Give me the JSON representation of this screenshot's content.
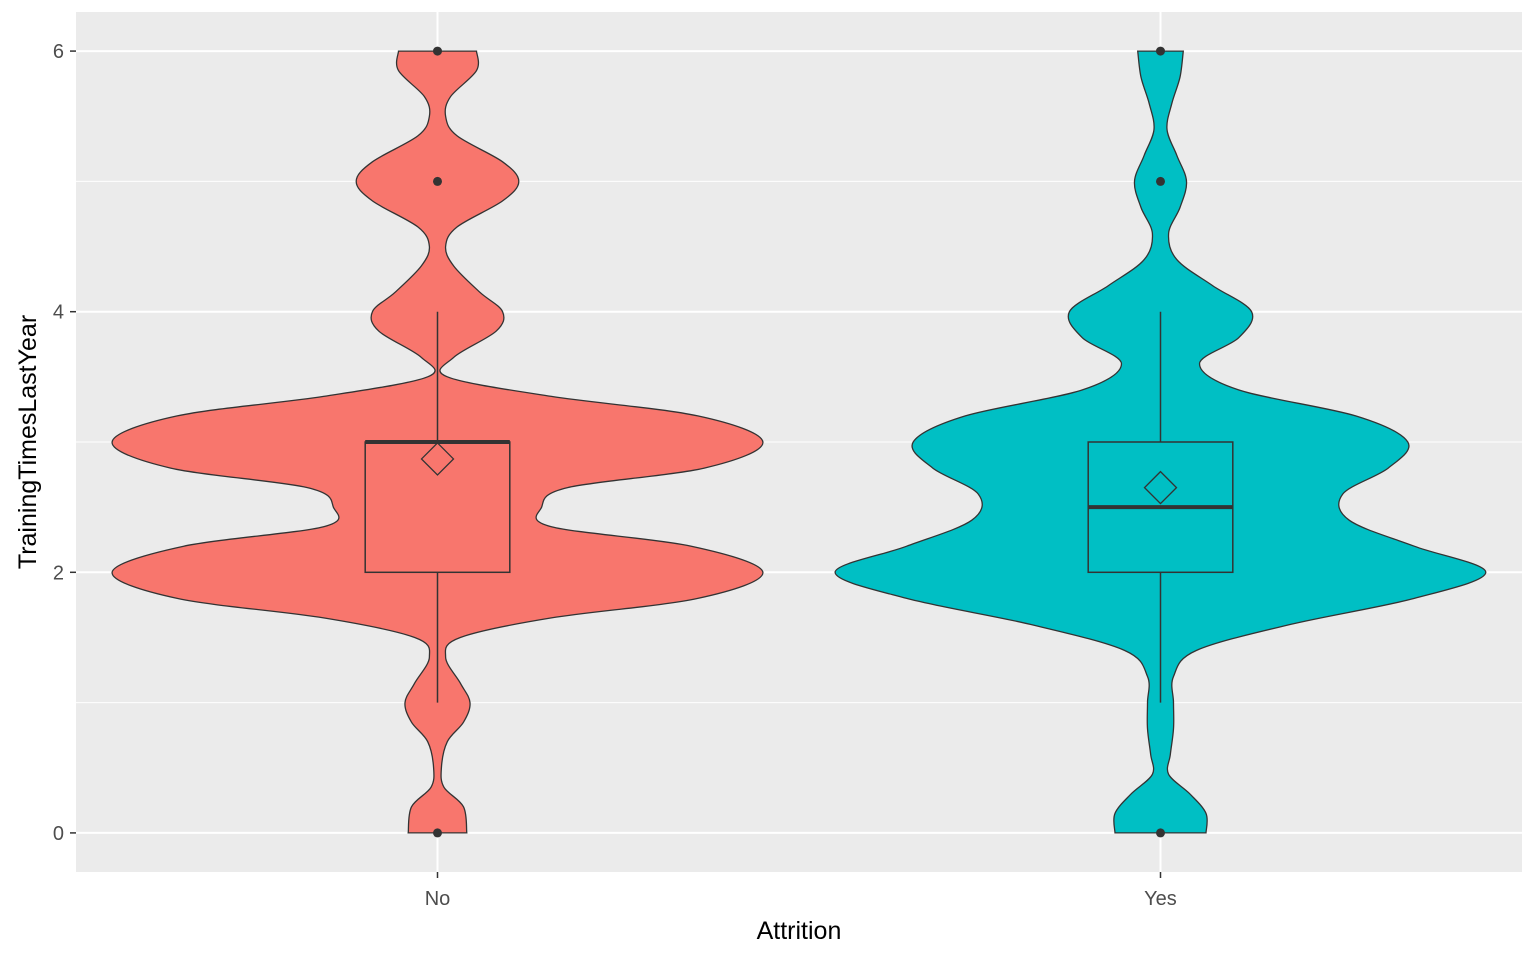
{
  "chart_data": {
    "type": "violin",
    "xlabel": "Attrition",
    "ylabel": "TrainingTimesLastYear",
    "categories": [
      "No",
      "Yes"
    ],
    "ylim": [
      -0.3,
      6.3
    ],
    "y_ticks": [
      0,
      2,
      4,
      6
    ],
    "grid": true,
    "legend": "none",
    "background": "#ebebeb",
    "gridline_color": "#ffffff",
    "series": [
      {
        "category": "No",
        "color": "#f8766d",
        "density": [
          [
            0.0,
            0.09
          ],
          [
            0.2,
            0.08
          ],
          [
            0.35,
            0.02
          ],
          [
            0.5,
            0.012
          ],
          [
            0.7,
            0.03
          ],
          [
            0.85,
            0.08
          ],
          [
            1.0,
            0.1
          ],
          [
            1.15,
            0.07
          ],
          [
            1.35,
            0.025
          ],
          [
            1.5,
            0.07
          ],
          [
            1.65,
            0.35
          ],
          [
            1.8,
            0.8
          ],
          [
            2.0,
            1.0
          ],
          [
            2.2,
            0.78
          ],
          [
            2.35,
            0.35
          ],
          [
            2.5,
            0.32
          ],
          [
            2.65,
            0.4
          ],
          [
            2.8,
            0.82
          ],
          [
            3.0,
            1.0
          ],
          [
            3.2,
            0.8
          ],
          [
            3.35,
            0.35
          ],
          [
            3.5,
            0.03
          ],
          [
            3.65,
            0.05
          ],
          [
            3.85,
            0.18
          ],
          [
            4.0,
            0.2
          ],
          [
            4.15,
            0.13
          ],
          [
            4.35,
            0.05
          ],
          [
            4.5,
            0.025
          ],
          [
            4.65,
            0.06
          ],
          [
            4.85,
            0.2
          ],
          [
            5.0,
            0.25
          ],
          [
            5.15,
            0.2
          ],
          [
            5.35,
            0.06
          ],
          [
            5.5,
            0.025
          ],
          [
            5.65,
            0.04
          ],
          [
            5.85,
            0.12
          ],
          [
            6.0,
            0.12
          ]
        ],
        "box": {
          "lower_whisker": 1,
          "q1": 2,
          "median": 3,
          "q3": 3,
          "upper_whisker": 4
        },
        "mean": 2.87,
        "outliers": [
          0,
          5,
          6
        ]
      },
      {
        "category": "Yes",
        "color": "#00bfc4",
        "density": [
          [
            0.0,
            0.14
          ],
          [
            0.15,
            0.14
          ],
          [
            0.3,
            0.09
          ],
          [
            0.45,
            0.025
          ],
          [
            0.6,
            0.03
          ],
          [
            0.8,
            0.04
          ],
          [
            1.0,
            0.04
          ],
          [
            1.2,
            0.04
          ],
          [
            1.4,
            0.11
          ],
          [
            1.6,
            0.4
          ],
          [
            1.8,
            0.78
          ],
          [
            2.0,
            1.0
          ],
          [
            2.2,
            0.78
          ],
          [
            2.4,
            0.58
          ],
          [
            2.6,
            0.56
          ],
          [
            2.8,
            0.7
          ],
          [
            3.0,
            0.76
          ],
          [
            3.2,
            0.6
          ],
          [
            3.4,
            0.24
          ],
          [
            3.6,
            0.12
          ],
          [
            3.8,
            0.24
          ],
          [
            4.0,
            0.28
          ],
          [
            4.2,
            0.16
          ],
          [
            4.4,
            0.05
          ],
          [
            4.6,
            0.025
          ],
          [
            4.8,
            0.06
          ],
          [
            5.0,
            0.08
          ],
          [
            5.2,
            0.05
          ],
          [
            5.4,
            0.02
          ],
          [
            5.6,
            0.035
          ],
          [
            5.8,
            0.06
          ],
          [
            6.0,
            0.07
          ]
        ],
        "box": {
          "lower_whisker": 1,
          "q1": 2,
          "median": 2.5,
          "q3": 3,
          "upper_whisker": 4
        },
        "mean": 2.65,
        "outliers": [
          0,
          5,
          6
        ]
      }
    ]
  }
}
